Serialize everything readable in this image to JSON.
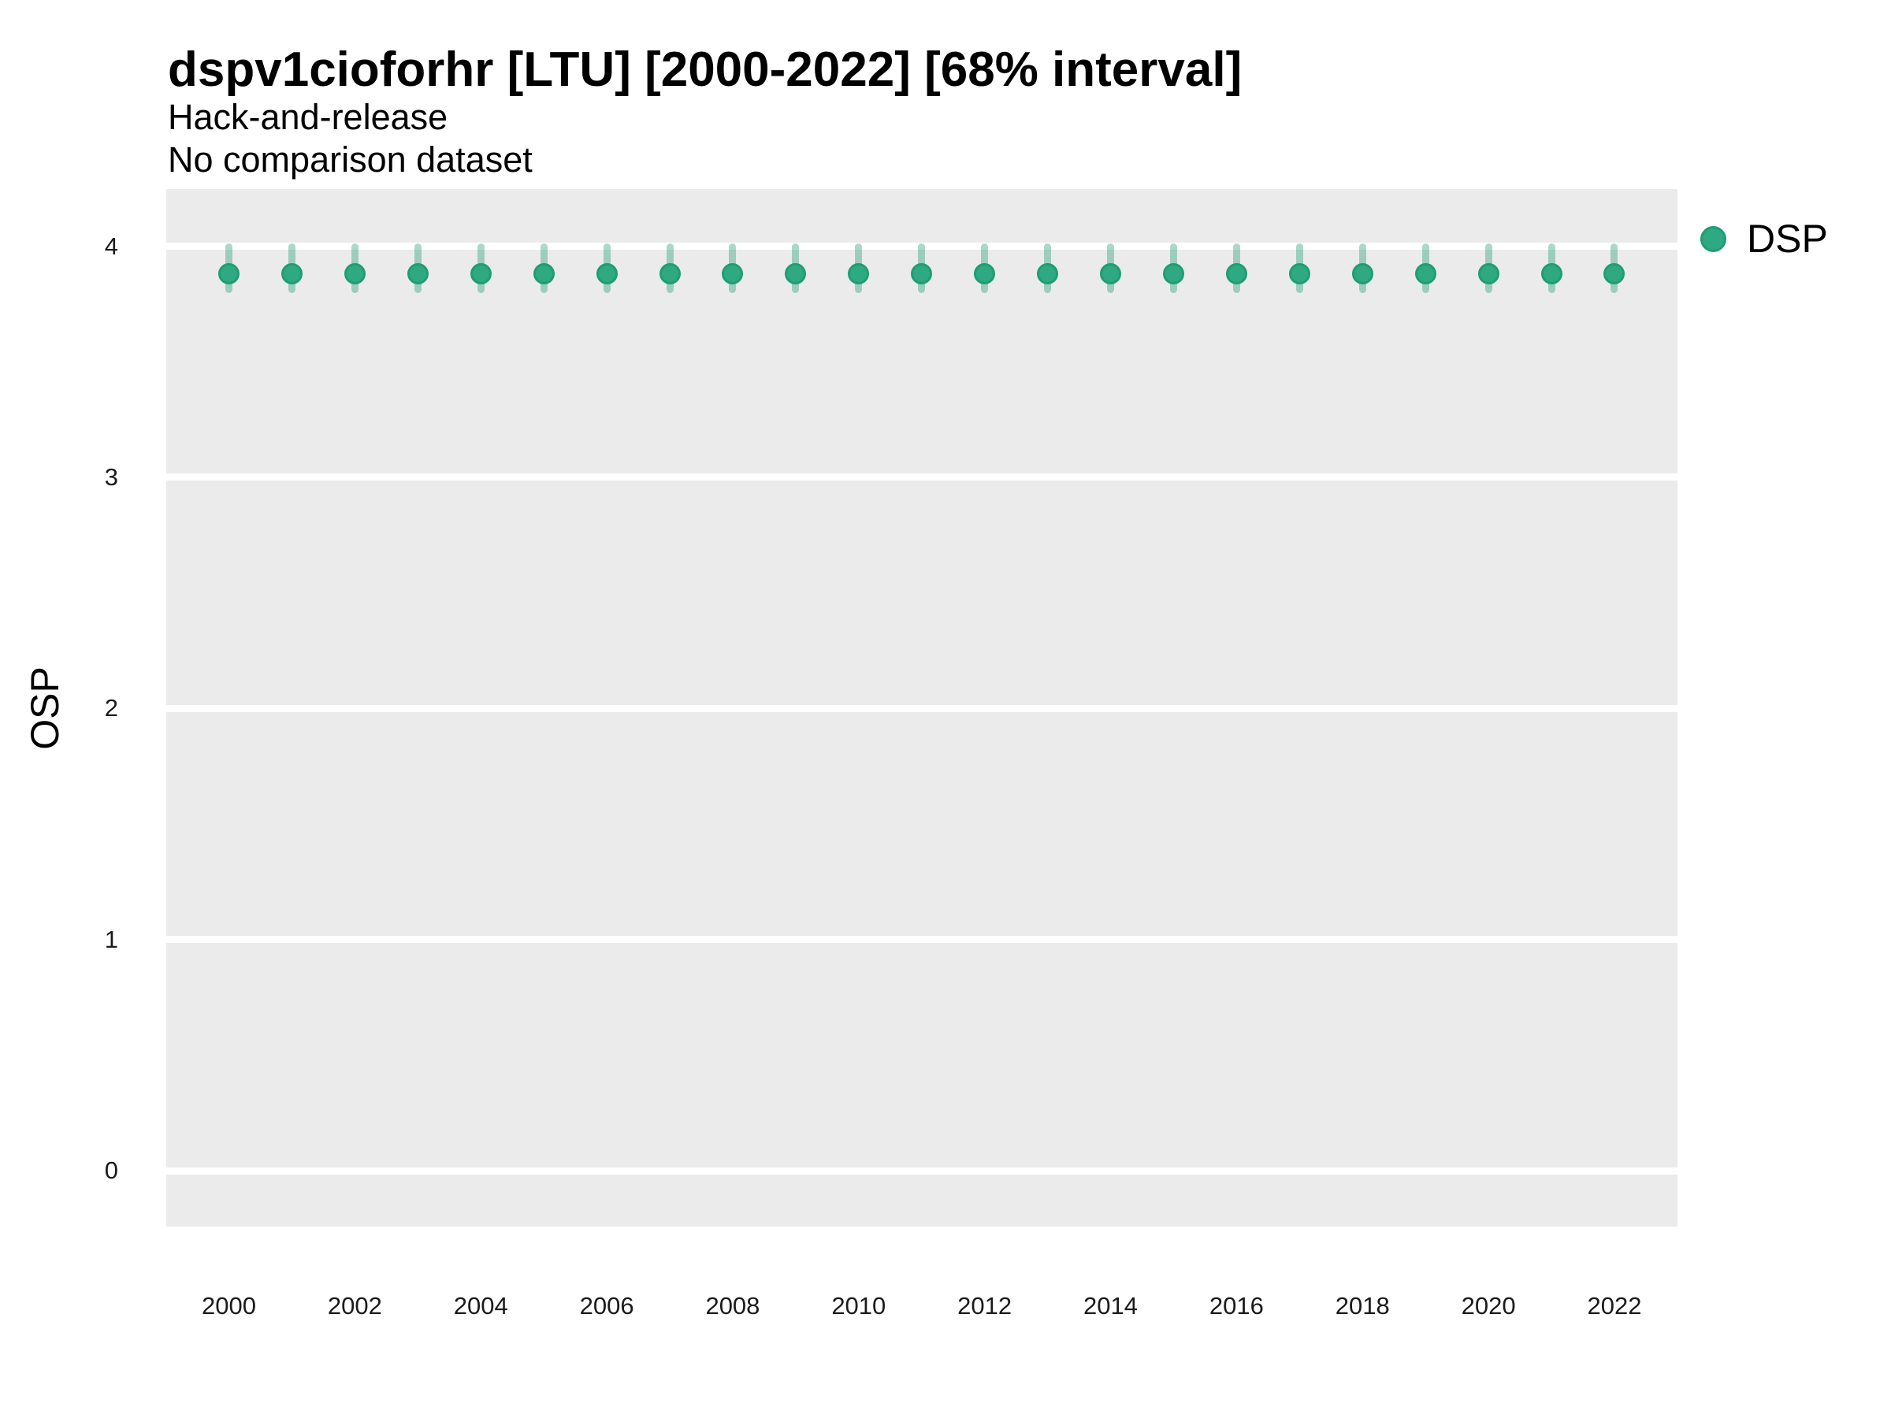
{
  "header": {
    "title": "dspv1cioforhr [LTU] [2000-2022] [68% interval]",
    "subtitle_line1": "Hack-and-release",
    "subtitle_line2": "No comparison dataset"
  },
  "legend": {
    "label": "DSP"
  },
  "colors": {
    "point_fill": "#2fa981",
    "point_stroke": "#1f9d73",
    "interval": "rgba(29,158,114,0.38)",
    "panel_background": "#ebebeb",
    "gridline": "#ffffff"
  },
  "chart_data": {
    "type": "scatter",
    "title": "dspv1cioforhr [LTU] [2000-2022] [68% interval]",
    "subtitle": [
      "Hack-and-release",
      "No comparison dataset"
    ],
    "xlabel": "",
    "ylabel": "OSP",
    "legend_position": "right",
    "grid": "major-horizontal-white-on-gray",
    "x_ticks": [
      2000,
      2002,
      2004,
      2006,
      2008,
      2010,
      2012,
      2014,
      2016,
      2018,
      2020,
      2022
    ],
    "y_ticks": [
      0,
      1,
      2,
      3,
      4
    ],
    "xlim": [
      1999,
      2023
    ],
    "ylim": [
      -0.24,
      4.25
    ],
    "series": [
      {
        "name": "DSP",
        "interval_label": "68% interval",
        "points": [
          {
            "year": 2000,
            "est": 3.88,
            "lo": 3.81,
            "hi": 4.0
          },
          {
            "year": 2001,
            "est": 3.88,
            "lo": 3.81,
            "hi": 4.0
          },
          {
            "year": 2002,
            "est": 3.88,
            "lo": 3.81,
            "hi": 4.0
          },
          {
            "year": 2003,
            "est": 3.88,
            "lo": 3.81,
            "hi": 4.0
          },
          {
            "year": 2004,
            "est": 3.88,
            "lo": 3.81,
            "hi": 4.0
          },
          {
            "year": 2005,
            "est": 3.88,
            "lo": 3.81,
            "hi": 4.0
          },
          {
            "year": 2006,
            "est": 3.88,
            "lo": 3.81,
            "hi": 4.0
          },
          {
            "year": 2007,
            "est": 3.88,
            "lo": 3.81,
            "hi": 4.0
          },
          {
            "year": 2008,
            "est": 3.88,
            "lo": 3.81,
            "hi": 4.0
          },
          {
            "year": 2009,
            "est": 3.88,
            "lo": 3.81,
            "hi": 4.0
          },
          {
            "year": 2010,
            "est": 3.88,
            "lo": 3.81,
            "hi": 4.0
          },
          {
            "year": 2011,
            "est": 3.88,
            "lo": 3.81,
            "hi": 4.0
          },
          {
            "year": 2012,
            "est": 3.88,
            "lo": 3.81,
            "hi": 4.0
          },
          {
            "year": 2013,
            "est": 3.88,
            "lo": 3.81,
            "hi": 4.0
          },
          {
            "year": 2014,
            "est": 3.88,
            "lo": 3.81,
            "hi": 4.0
          },
          {
            "year": 2015,
            "est": 3.88,
            "lo": 3.81,
            "hi": 4.0
          },
          {
            "year": 2016,
            "est": 3.88,
            "lo": 3.81,
            "hi": 4.0
          },
          {
            "year": 2017,
            "est": 3.88,
            "lo": 3.81,
            "hi": 4.0
          },
          {
            "year": 2018,
            "est": 3.88,
            "lo": 3.81,
            "hi": 4.0
          },
          {
            "year": 2019,
            "est": 3.88,
            "lo": 3.81,
            "hi": 4.0
          },
          {
            "year": 2020,
            "est": 3.88,
            "lo": 3.81,
            "hi": 4.0
          },
          {
            "year": 2021,
            "est": 3.88,
            "lo": 3.81,
            "hi": 4.0
          },
          {
            "year": 2022,
            "est": 3.88,
            "lo": 3.81,
            "hi": 4.0
          }
        ]
      }
    ]
  }
}
